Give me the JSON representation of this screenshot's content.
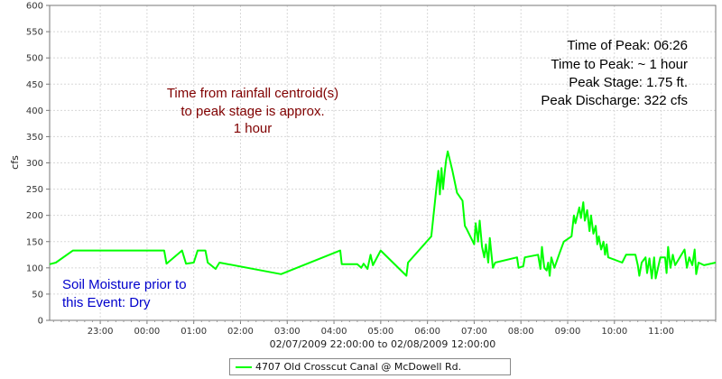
{
  "chart_data": {
    "type": "line",
    "xlabel": "02/07/2009 22:00:00 to 02/08/2009 12:00:00",
    "ylabel": "cfs",
    "ylim": [
      0,
      600
    ],
    "yticks": [
      0,
      50,
      100,
      150,
      200,
      250,
      300,
      350,
      400,
      450,
      500,
      550,
      600
    ],
    "xrange": [
      "2009-02-07 21:55",
      "2009-02-08 12:10"
    ],
    "xtick_labels": [
      "23:00",
      "00:00",
      "01:00",
      "02:00",
      "03:00",
      "04:00",
      "05:00",
      "06:00",
      "07:00",
      "08:00",
      "09:00",
      "10:00",
      "11:00"
    ],
    "grid": true,
    "legend_position": "bottom",
    "series": [
      {
        "name": "4707 Old Crosscut Canal @ McDowell Rd.",
        "color": "#00ff00",
        "points": [
          [
            "2009-02-07 21:55",
            107
          ],
          [
            "2009-02-07 22:03",
            110
          ],
          [
            "2009-02-07 22:25",
            133
          ],
          [
            "2009-02-08 00:22",
            133
          ],
          [
            "2009-02-08 00:25",
            108
          ],
          [
            "2009-02-08 00:45",
            133
          ],
          [
            "2009-02-08 00:50",
            108
          ],
          [
            "2009-02-08 01:00",
            110
          ],
          [
            "2009-02-08 01:05",
            133
          ],
          [
            "2009-02-08 01:15",
            133
          ],
          [
            "2009-02-08 01:18",
            110
          ],
          [
            "2009-02-08 01:28",
            98
          ],
          [
            "2009-02-08 01:33",
            110
          ],
          [
            "2009-02-08 02:52",
            88
          ],
          [
            "2009-02-08 04:08",
            133
          ],
          [
            "2009-02-08 04:10",
            107
          ],
          [
            "2009-02-08 04:30",
            107
          ],
          [
            "2009-02-08 04:35",
            100
          ],
          [
            "2009-02-08 04:38",
            108
          ],
          [
            "2009-02-08 04:43",
            98
          ],
          [
            "2009-02-08 04:47",
            125
          ],
          [
            "2009-02-08 04:50",
            105
          ],
          [
            "2009-02-08 05:00",
            133
          ],
          [
            "2009-02-08 05:33",
            85
          ],
          [
            "2009-02-08 05:35",
            110
          ],
          [
            "2009-02-08 06:05",
            160
          ],
          [
            "2009-02-08 06:10",
            232
          ],
          [
            "2009-02-08 06:12",
            260
          ],
          [
            "2009-02-08 06:14",
            285
          ],
          [
            "2009-02-08 06:16",
            240
          ],
          [
            "2009-02-08 06:18",
            290
          ],
          [
            "2009-02-08 06:20",
            250
          ],
          [
            "2009-02-08 06:22",
            280
          ],
          [
            "2009-02-08 06:24",
            305
          ],
          [
            "2009-02-08 06:26",
            322
          ],
          [
            "2009-02-08 06:28",
            310
          ],
          [
            "2009-02-08 06:32",
            285
          ],
          [
            "2009-02-08 06:38",
            243
          ],
          [
            "2009-02-08 06:45",
            228
          ],
          [
            "2009-02-08 06:48",
            180
          ],
          [
            "2009-02-08 06:50",
            175
          ],
          [
            "2009-02-08 06:55",
            160
          ],
          [
            "2009-02-08 07:00",
            145
          ],
          [
            "2009-02-08 07:02",
            185
          ],
          [
            "2009-02-08 07:05",
            150
          ],
          [
            "2009-02-08 07:07",
            190
          ],
          [
            "2009-02-08 07:10",
            140
          ],
          [
            "2009-02-08 07:13",
            120
          ],
          [
            "2009-02-08 07:15",
            145
          ],
          [
            "2009-02-08 07:18",
            110
          ],
          [
            "2009-02-08 07:20",
            157
          ],
          [
            "2009-02-08 07:24",
            100
          ],
          [
            "2009-02-08 07:27",
            110
          ],
          [
            "2009-02-08 07:55",
            120
          ],
          [
            "2009-02-08 07:57",
            100
          ],
          [
            "2009-02-08 08:03",
            103
          ],
          [
            "2009-02-08 08:05",
            120
          ],
          [
            "2009-02-08 08:22",
            125
          ],
          [
            "2009-02-08 08:25",
            98
          ],
          [
            "2009-02-08 08:27",
            140
          ],
          [
            "2009-02-08 08:30",
            100
          ],
          [
            "2009-02-08 08:33",
            95
          ],
          [
            "2009-02-08 08:35",
            110
          ],
          [
            "2009-02-08 08:37",
            85
          ],
          [
            "2009-02-08 08:39",
            120
          ],
          [
            "2009-02-08 08:43",
            100
          ],
          [
            "2009-02-08 08:50",
            130
          ],
          [
            "2009-02-08 08:55",
            150
          ],
          [
            "2009-02-08 09:05",
            160
          ],
          [
            "2009-02-08 09:08",
            200
          ],
          [
            "2009-02-08 09:10",
            185
          ],
          [
            "2009-02-08 09:15",
            215
          ],
          [
            "2009-02-08 09:17",
            195
          ],
          [
            "2009-02-08 09:20",
            225
          ],
          [
            "2009-02-08 09:22",
            190
          ],
          [
            "2009-02-08 09:25",
            210
          ],
          [
            "2009-02-08 09:28",
            170
          ],
          [
            "2009-02-08 09:30",
            200
          ],
          [
            "2009-02-08 09:33",
            165
          ],
          [
            "2009-02-08 09:36",
            180
          ],
          [
            "2009-02-08 09:38",
            145
          ],
          [
            "2009-02-08 09:40",
            160
          ],
          [
            "2009-02-08 09:43",
            135
          ],
          [
            "2009-02-08 09:46",
            150
          ],
          [
            "2009-02-08 09:48",
            125
          ],
          [
            "2009-02-08 09:50",
            145
          ],
          [
            "2009-02-08 09:52",
            120
          ],
          [
            "2009-02-08 10:10",
            110
          ],
          [
            "2009-02-08 10:15",
            125
          ],
          [
            "2009-02-08 10:27",
            125
          ],
          [
            "2009-02-08 10:30",
            105
          ],
          [
            "2009-02-08 10:32",
            85
          ],
          [
            "2009-02-08 10:35",
            110
          ],
          [
            "2009-02-08 10:40",
            120
          ],
          [
            "2009-02-08 10:42",
            90
          ],
          [
            "2009-02-08 10:45",
            118
          ],
          [
            "2009-02-08 10:48",
            80
          ],
          [
            "2009-02-08 10:51",
            120
          ],
          [
            "2009-02-08 10:53",
            80
          ],
          [
            "2009-02-08 10:56",
            100
          ],
          [
            "2009-02-08 10:59",
            120
          ],
          [
            "2009-02-08 11:05",
            120
          ],
          [
            "2009-02-08 11:07",
            90
          ],
          [
            "2009-02-08 11:09",
            140
          ],
          [
            "2009-02-08 11:12",
            100
          ],
          [
            "2009-02-08 11:15",
            125
          ],
          [
            "2009-02-08 11:18",
            105
          ],
          [
            "2009-02-08 11:30",
            135
          ],
          [
            "2009-02-08 11:33",
            100
          ],
          [
            "2009-02-08 11:36",
            120
          ],
          [
            "2009-02-08 11:40",
            105
          ],
          [
            "2009-02-08 11:43",
            135
          ],
          [
            "2009-02-08 11:45",
            88
          ],
          [
            "2009-02-08 11:48",
            110
          ],
          [
            "2009-02-08 11:55",
            105
          ],
          [
            "2009-02-08 12:10",
            110
          ]
        ]
      }
    ],
    "annotations": {
      "centroid": {
        "lines": [
          "Time from rainfall centroid(s)",
          "to peak stage is approx.",
          "1 hour"
        ],
        "color": "#800000"
      },
      "peak_info": {
        "lines": [
          "Time of Peak: 06:26",
          "Time to Peak: ~ 1 hour",
          "Peak Stage: 1.75 ft.",
          "Peak Discharge: 322 cfs"
        ],
        "color": "#000000"
      },
      "soil": {
        "lines": [
          "Soil Moisture prior to",
          "this Event: Dry"
        ],
        "color": "#0000cc"
      }
    }
  }
}
